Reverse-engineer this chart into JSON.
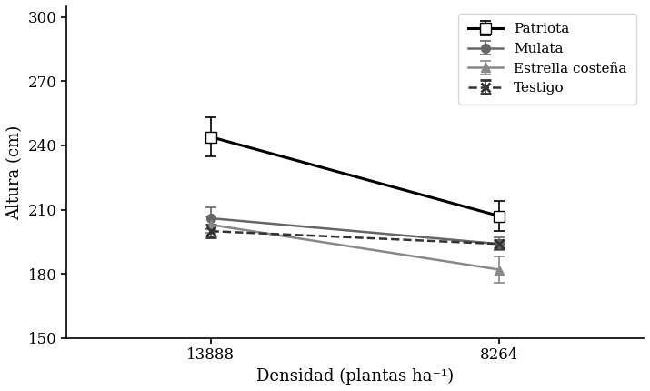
{
  "x_positions": [
    0,
    1
  ],
  "x_labels": [
    "13888",
    "8264"
  ],
  "series": [
    {
      "label": "Patriota",
      "values": [
        244,
        207
      ],
      "yerr": [
        9,
        7
      ],
      "color": "#000000",
      "linestyle": "-",
      "marker": "s",
      "markerfacecolor": "white",
      "markeredgecolor": "#000000",
      "markersize": 8,
      "linewidth": 2.2
    },
    {
      "label": "Mulata",
      "values": [
        206,
        194
      ],
      "yerr": [
        5,
        3
      ],
      "color": "#666666",
      "linestyle": "-",
      "marker": "o",
      "markerfacecolor": "#666666",
      "markeredgecolor": "#666666",
      "markersize": 7,
      "linewidth": 1.8
    },
    {
      "label": "Estrella costeña",
      "values": [
        203,
        182
      ],
      "yerr": [
        4,
        6
      ],
      "color": "#888888",
      "linestyle": "-",
      "marker": "^",
      "markerfacecolor": "#888888",
      "markeredgecolor": "#888888",
      "markersize": 7,
      "linewidth": 1.8
    },
    {
      "label": "Testigo",
      "values": [
        200,
        194
      ],
      "yerr": [
        3,
        2
      ],
      "color": "#333333",
      "linestyle": "--",
      "marker": "x",
      "markerfacecolor": "#333333",
      "markeredgecolor": "#333333",
      "markersize": 7,
      "linewidth": 1.8,
      "markeredgewidth": 2.0
    }
  ],
  "ylabel": "Altura (cm)",
  "xlabel": "Densidad (plantas ha⁻¹)",
  "ylim": [
    150,
    305
  ],
  "yticks": [
    150,
    180,
    210,
    240,
    270,
    300
  ],
  "figsize": [
    7.15,
    4.3
  ],
  "dpi": 100
}
